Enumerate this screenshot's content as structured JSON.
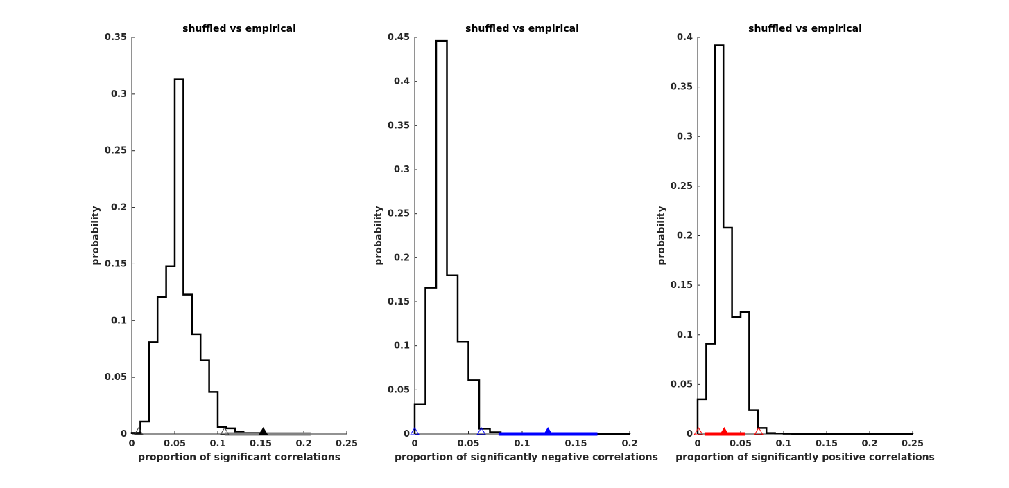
{
  "chart_data": [
    {
      "type": "histogram",
      "title": "shuffled vs empirical",
      "xlabel": "proportion of significant correlations",
      "ylabel": "probability",
      "xlim": [
        0,
        0.25
      ],
      "ylim": [
        0,
        0.35
      ],
      "xticks": [
        0,
        0.05,
        0.1,
        0.15,
        0.2,
        0.25
      ],
      "xtick_labels": [
        "0",
        "0.05",
        "0.1",
        "0.15",
        "0.2",
        "0.25"
      ],
      "yticks": [
        0,
        0.05,
        0.1,
        0.15,
        0.2,
        0.25,
        0.3,
        0.35
      ],
      "ytick_labels": [
        "0",
        "0.05",
        "0.1",
        "0.15",
        "0.2",
        "0.25",
        "0.3",
        "0.35"
      ],
      "bin_edges": [
        0,
        0.01,
        0.02,
        0.03,
        0.04,
        0.05,
        0.06,
        0.07,
        0.08,
        0.09,
        0.1,
        0.11,
        0.12,
        0.13,
        0.14,
        0.15,
        0.16
      ],
      "values": [
        0.001,
        0.011,
        0.081,
        0.121,
        0.148,
        0.313,
        0.123,
        0.088,
        0.065,
        0.037,
        0.006,
        0.005,
        0.002,
        0.001,
        0.001,
        0.0005
      ],
      "line_color": "#000000",
      "empirical_range": [
        0.108,
        0.208
      ],
      "empirical_color": "#808080",
      "markers": [
        {
          "x": 0.008,
          "filled": false,
          "color": "#404040"
        },
        {
          "x": 0.108,
          "filled": false,
          "color": "#404040"
        },
        {
          "x": 0.153,
          "filled": true,
          "color": "#000000"
        }
      ]
    },
    {
      "type": "histogram",
      "title": "shuffled vs empirical",
      "xlabel": "proportion of significantly negative correlations",
      "ylabel": "probability",
      "xlim": [
        0,
        0.2
      ],
      "ylim": [
        0,
        0.45
      ],
      "xticks": [
        0,
        0.05,
        0.1,
        0.15,
        0.2
      ],
      "xtick_labels": [
        "0",
        "0.05",
        "0.1",
        "0.15",
        "0.2"
      ],
      "yticks": [
        0,
        0.05,
        0.1,
        0.15,
        0.2,
        0.25,
        0.3,
        0.35,
        0.4,
        0.45
      ],
      "ytick_labels": [
        "0",
        "0.05",
        "0.1",
        "0.15",
        "0.2",
        "0.25",
        "0.3",
        "0.35",
        "0.4",
        "0.45"
      ],
      "bin_edges": [
        0,
        0.01,
        0.02,
        0.03,
        0.04,
        0.05,
        0.06,
        0.07,
        0.08,
        0.09,
        0.1,
        0.11,
        0.12,
        0.13,
        0.14,
        0.15,
        0.16,
        0.17,
        0.18,
        0.19,
        0.2
      ],
      "values": [
        0.034,
        0.166,
        0.446,
        0.18,
        0.105,
        0.061,
        0.006,
        0.002,
        0.001,
        0.0005,
        0.0003,
        0.0002,
        0.0002,
        0.0001,
        0.0001,
        0.0001,
        0.0001,
        0.0001,
        0.0001,
        0.0001
      ],
      "line_color": "#000000",
      "empirical_range": [
        0.078,
        0.17
      ],
      "empirical_color": "#0000ff",
      "markers": [
        {
          "x": 0.0,
          "filled": false,
          "color": "#0000ff"
        },
        {
          "x": 0.062,
          "filled": false,
          "color": "#0000ff"
        },
        {
          "x": 0.124,
          "filled": true,
          "color": "#0000ff"
        }
      ]
    },
    {
      "type": "histogram",
      "title": "shuffled vs empirical",
      "xlabel": "proportion of significantly positive correlations",
      "ylabel": "probability",
      "xlim": [
        0,
        0.25
      ],
      "ylim": [
        0,
        0.4
      ],
      "xticks": [
        0,
        0.05,
        0.1,
        0.15,
        0.2,
        0.25
      ],
      "xtick_labels": [
        "0",
        "0.05",
        "0.1",
        "0.15",
        "0.2",
        "0.25"
      ],
      "yticks": [
        0,
        0.05,
        0.1,
        0.15,
        0.2,
        0.25,
        0.3,
        0.35,
        0.4
      ],
      "ytick_labels": [
        "0",
        "0.05",
        "0.1",
        "0.15",
        "0.2",
        "0.25",
        "0.3",
        "0.35",
        "0.4"
      ],
      "bin_edges": [
        0,
        0.01,
        0.02,
        0.03,
        0.04,
        0.05,
        0.06,
        0.07,
        0.08,
        0.09,
        0.1,
        0.11,
        0.12,
        0.13,
        0.14,
        0.15,
        0.16,
        0.17,
        0.18,
        0.19,
        0.2,
        0.21,
        0.22,
        0.23,
        0.24,
        0.25
      ],
      "values": [
        0.035,
        0.091,
        0.392,
        0.208,
        0.118,
        0.123,
        0.024,
        0.006,
        0.001,
        0.0005,
        0.0003,
        0.0002,
        0.0001,
        0.0001,
        0.0001,
        0.0001,
        0.0001,
        0.0001,
        0.0001,
        0.0001,
        0.0001,
        0.0001,
        0.0001,
        0.0001,
        0.0001
      ],
      "line_color": "#000000",
      "empirical_range": [
        0.008,
        0.055
      ],
      "empirical_color": "#ff0000",
      "markers": [
        {
          "x": 0.001,
          "filled": false,
          "color": "#ff0000"
        },
        {
          "x": 0.071,
          "filled": false,
          "color": "#ff0000"
        },
        {
          "x": 0.031,
          "filled": true,
          "color": "#ff0000"
        }
      ]
    }
  ]
}
